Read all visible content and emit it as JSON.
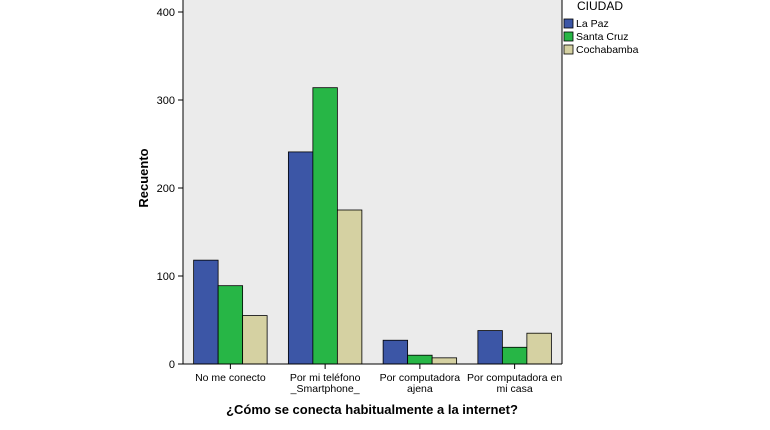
{
  "chart_data": {
    "type": "bar",
    "title": "",
    "xlabel": "¿Cómo se conecta habitualmente a la internet?",
    "ylabel": "Recuento",
    "ylim": [
      0,
      400
    ],
    "yticks": [
      0,
      100,
      200,
      300,
      400
    ],
    "grid": false,
    "legend_position": "top-right",
    "legend_title": "CIUDAD",
    "categories": [
      [
        "No me conecto"
      ],
      [
        "Por mi teléfono",
        "_Smartphone_"
      ],
      [
        "Por computadora",
        "ajena"
      ],
      [
        "Por computadora en",
        "mi casa"
      ]
    ],
    "series": [
      {
        "name": "La Paz",
        "color": "#3c56a6",
        "values": [
          118,
          241,
          27,
          38
        ]
      },
      {
        "name": "Santa Cruz",
        "color": "#27b646",
        "values": [
          89,
          314,
          10,
          19
        ]
      },
      {
        "name": "Cochabamba",
        "color": "#d5d1a2",
        "values": [
          55,
          175,
          7,
          35
        ]
      }
    ],
    "plot_background": "#ebebeb"
  }
}
